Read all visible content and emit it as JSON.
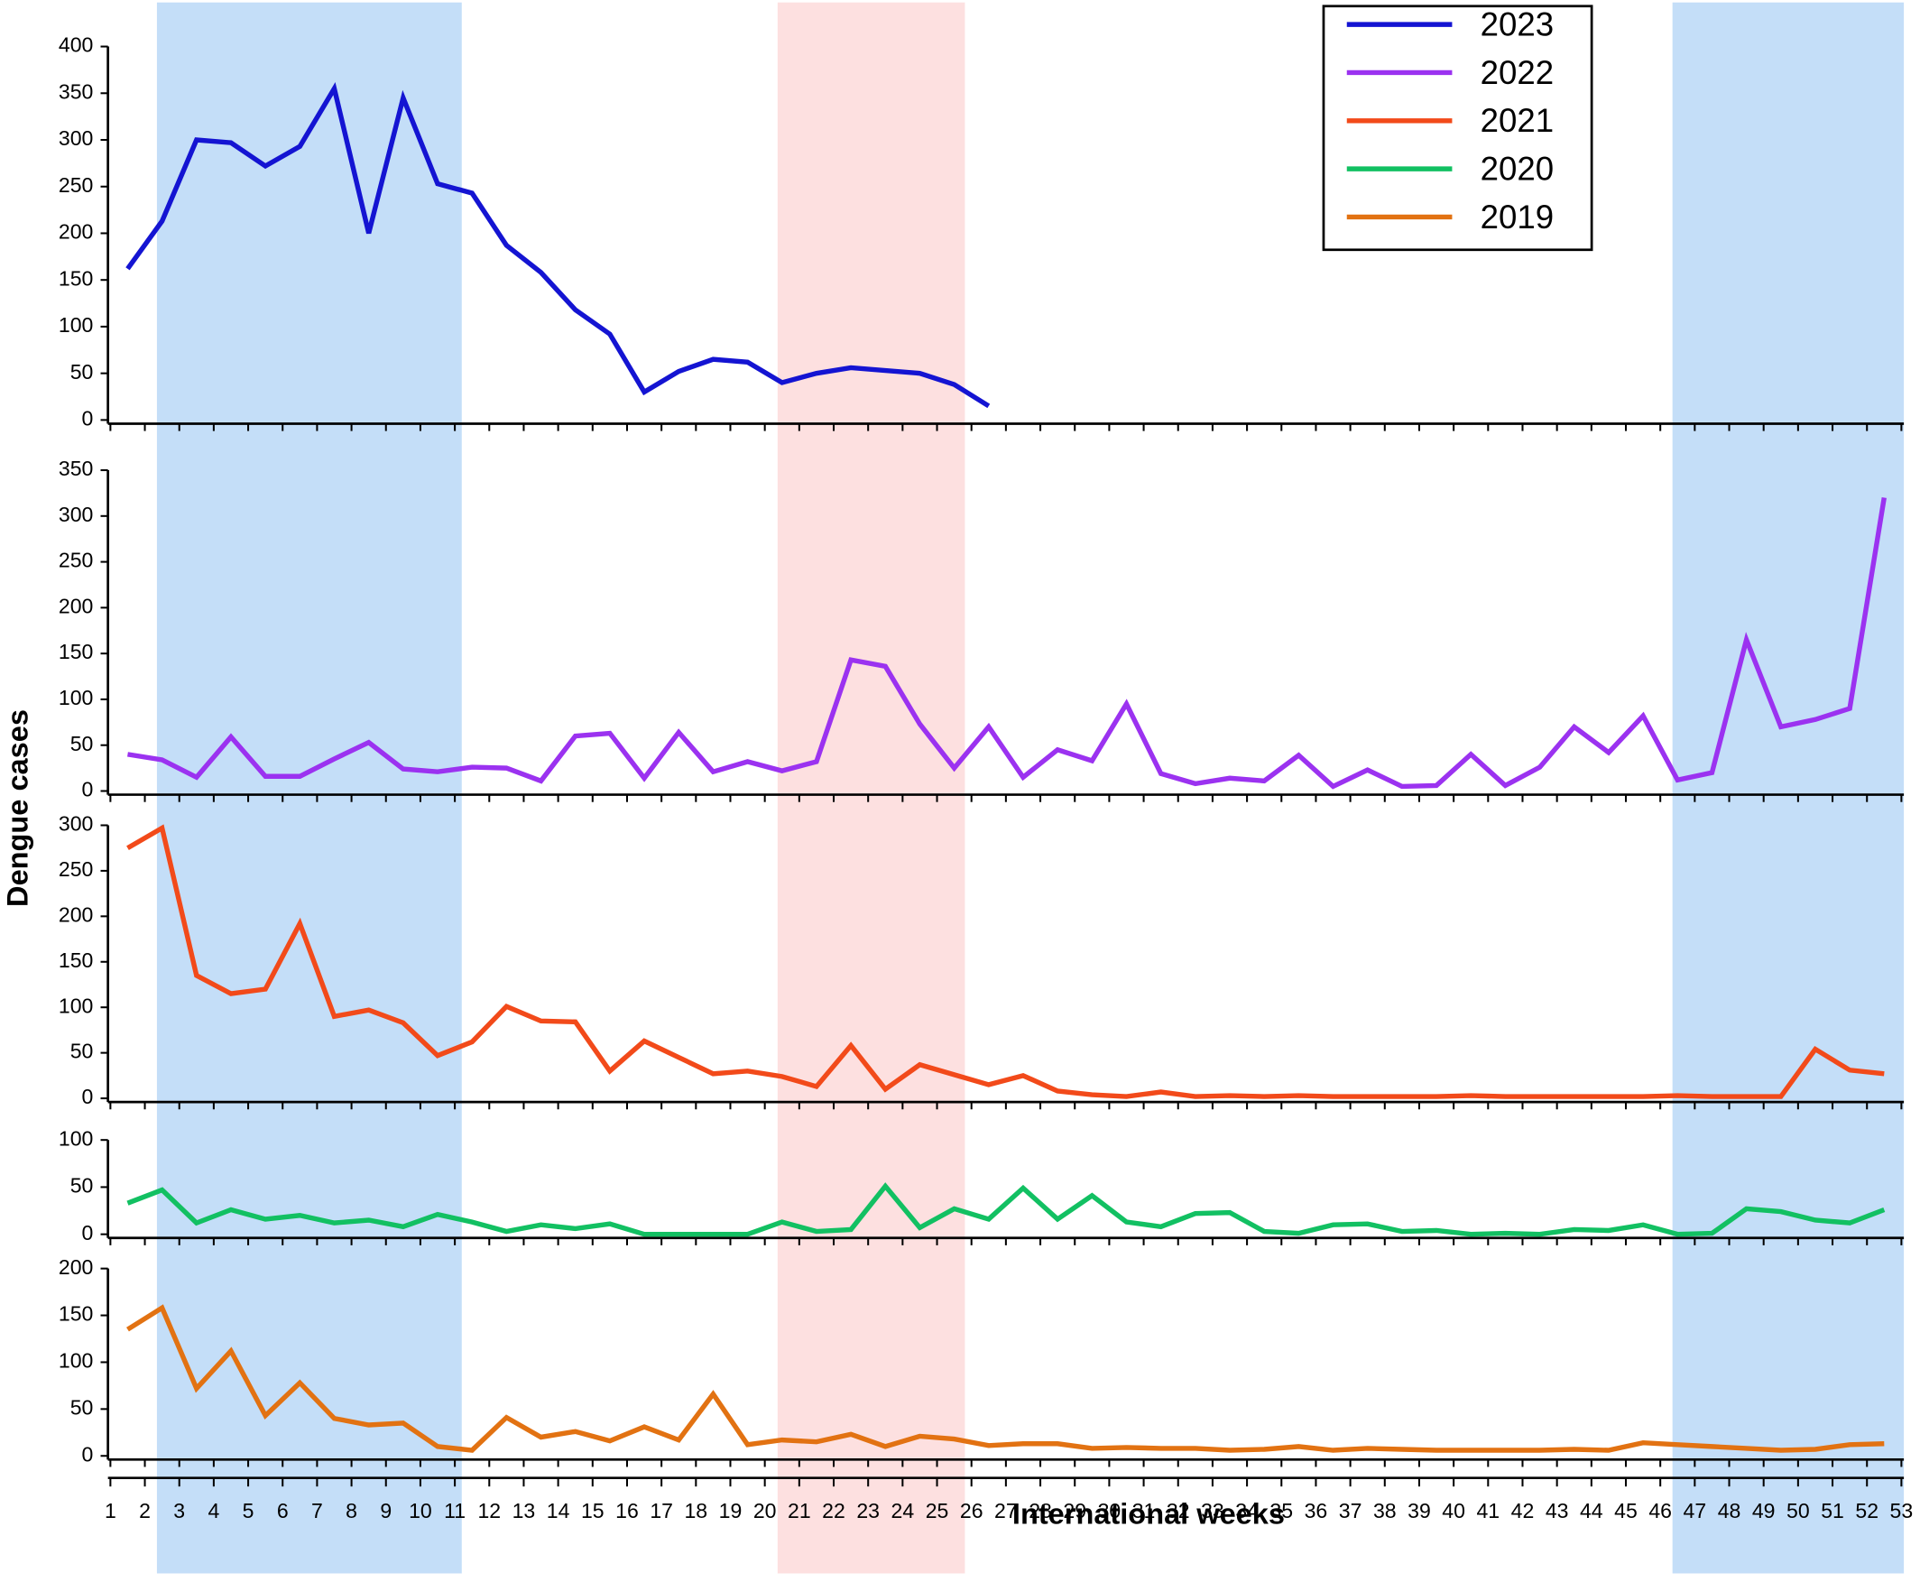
{
  "chart_data": {
    "type": "line",
    "x_label": "International weeks",
    "y_label": "Dengue cases",
    "xlim": [
      1,
      53
    ],
    "xticks": [
      1,
      2,
      3,
      4,
      5,
      6,
      7,
      8,
      9,
      10,
      11,
      12,
      13,
      14,
      15,
      16,
      17,
      18,
      19,
      20,
      21,
      22,
      23,
      24,
      25,
      26,
      27,
      28,
      29,
      30,
      31,
      32,
      33,
      34,
      35,
      36,
      37,
      38,
      39,
      40,
      41,
      42,
      43,
      44,
      45,
      46,
      47,
      48,
      49,
      50,
      51,
      52,
      53
    ],
    "x": [
      1.5,
      2.5,
      3.5,
      4.5,
      5.5,
      6.5,
      7.5,
      8.5,
      9.5,
      10.5,
      11.5,
      12.5,
      13.5,
      14.5,
      15.5,
      16.5,
      17.5,
      18.5,
      19.5,
      20.5,
      21.5,
      22.5,
      23.5,
      24.5,
      25.5,
      26.5,
      27.5,
      28.5,
      29.5,
      30.5,
      31.5,
      32.5,
      33.5,
      34.5,
      35.5,
      36.5,
      37.5,
      38.5,
      39.5,
      40.5,
      41.5,
      42.5,
      43.5,
      44.5,
      45.5,
      46.5,
      47.5,
      48.5,
      49.5,
      50.5,
      51.5,
      52.5
    ],
    "panels": [
      {
        "ylim": [
          0,
          400
        ],
        "yticks": [
          0,
          50,
          100,
          150,
          200,
          250,
          300,
          350,
          400
        ],
        "series": [
          {
            "name": "2023",
            "color": "#1414d2",
            "values": [
              162,
              213,
              300,
              297,
              272,
              293,
              355,
              200,
              345,
              253,
              243,
              187,
              158,
              118,
              92,
              30,
              52,
              65,
              62,
              40,
              50,
              56,
              53,
              50,
              38,
              15,
              null,
              null,
              null,
              null,
              null,
              null,
              null,
              null,
              null,
              null,
              null,
              null,
              null,
              null,
              null,
              null,
              null,
              null,
              null,
              null,
              null,
              null,
              null,
              null,
              null,
              null
            ]
          }
        ]
      },
      {
        "ylim": [
          0,
          350
        ],
        "yticks": [
          0,
          50,
          100,
          150,
          200,
          250,
          300,
          350
        ],
        "series": [
          {
            "name": "2022",
            "color": "#9b32f0",
            "values": [
              40,
              34,
              15,
              59,
              16,
              16,
              35,
              53,
              24,
              21,
              26,
              25,
              11,
              60,
              63,
              14,
              64,
              21,
              32,
              22,
              32,
              143,
              136,
              73,
              25,
              70,
              15,
              45,
              33,
              95,
              19,
              8,
              14,
              11,
              39,
              5,
              23,
              5,
              6,
              40,
              6,
              26,
              70,
              42,
              82,
              12,
              20,
              165,
              70,
              78,
              90,
              320
            ]
          }
        ]
      },
      {
        "ylim": [
          0,
          300
        ],
        "yticks": [
          0,
          50,
          100,
          150,
          200,
          250,
          300
        ],
        "series": [
          {
            "name": "2021",
            "color": "#f24a1a",
            "values": [
              275,
              297,
              135,
              115,
              120,
              192,
              90,
              97,
              83,
              47,
              62,
              101,
              85,
              84,
              30,
              63,
              45,
              27,
              30,
              24,
              13,
              58,
              10,
              37,
              26,
              15,
              25,
              8,
              4,
              2,
              7,
              2,
              3,
              2,
              3,
              2,
              2,
              2,
              2,
              3,
              2,
              2,
              2,
              2,
              2,
              3,
              2,
              2,
              2,
              54,
              31,
              27
            ]
          }
        ]
      },
      {
        "ylim": [
          0,
          100
        ],
        "yticks": [
          0,
          50,
          100
        ],
        "series": [
          {
            "name": "2020",
            "color": "#12c062",
            "values": [
              33,
              47,
              12,
              26,
              16,
              20,
              12,
              15,
              8,
              21,
              13,
              3,
              10,
              6,
              11,
              0,
              0,
              0,
              0,
              13,
              3,
              5,
              51,
              7,
              27,
              16,
              49,
              16,
              41,
              13,
              8,
              22,
              23,
              3,
              1,
              10,
              11,
              3,
              4,
              0,
              1,
              0,
              5,
              4,
              10,
              0,
              1,
              27,
              24,
              15,
              12,
              26
            ]
          }
        ]
      },
      {
        "ylim": [
          0,
          200
        ],
        "yticks": [
          0,
          50,
          100,
          150,
          200
        ],
        "series": [
          {
            "name": "2019",
            "color": "#e27212",
            "values": [
              135,
              158,
              72,
              112,
              43,
              78,
              40,
              33,
              35,
              10,
              6,
              41,
              20,
              26,
              16,
              31,
              17,
              66,
              12,
              17,
              15,
              23,
              10,
              21,
              18,
              11,
              13,
              13,
              8,
              9,
              8,
              8,
              6,
              7,
              10,
              6,
              8,
              7,
              6,
              6,
              6,
              6,
              7,
              6,
              14,
              12,
              10,
              8,
              6,
              7,
              12,
              13
            ]
          }
        ]
      }
    ]
  }
}
